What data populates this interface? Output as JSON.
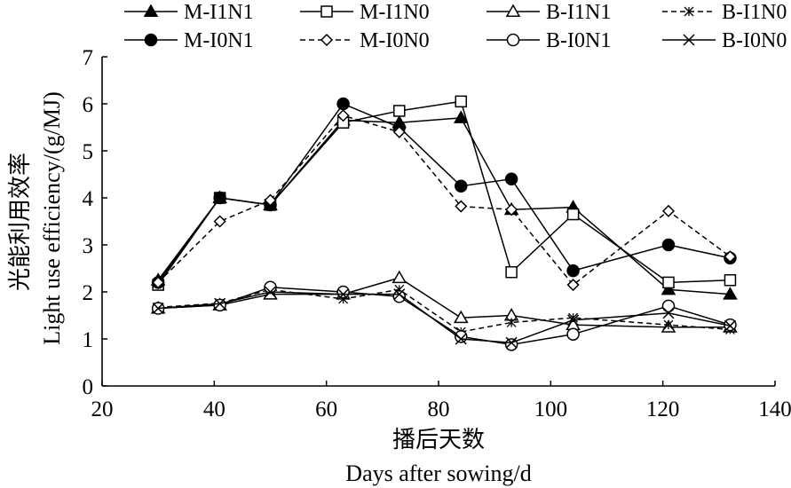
{
  "chart_data": {
    "type": "line",
    "xlabel_zh": "播后天数",
    "xlabel_en": "Days after sowing/d",
    "ylabel_zh": "光能利用效率",
    "ylabel_en": "Light use efficiency/(g/MJ)",
    "xlim": [
      20,
      140
    ],
    "ylim": [
      0,
      7
    ],
    "xticks": [
      20,
      40,
      60,
      80,
      100,
      120,
      140
    ],
    "yticks": [
      0,
      1,
      2,
      3,
      4,
      5,
      6,
      7
    ],
    "grid": false,
    "legend_position": "top",
    "x": [
      30,
      41,
      50,
      63,
      73,
      84,
      93,
      104,
      121,
      132
    ],
    "series": [
      {
        "name": "M-I1N1",
        "marker": "triangle-filled",
        "dash": "solid",
        "values": [
          2.25,
          4.0,
          3.85,
          5.65,
          5.6,
          5.7,
          3.75,
          3.8,
          2.05,
          1.95
        ]
      },
      {
        "name": "M-I1N0",
        "marker": "square-open",
        "dash": "solid",
        "values": [
          2.15,
          4.0,
          3.85,
          5.6,
          5.85,
          6.05,
          2.42,
          3.65,
          2.2,
          2.25
        ]
      },
      {
        "name": "B-I1N1",
        "marker": "triangle-open",
        "dash": "solid",
        "values": [
          1.65,
          1.72,
          1.95,
          1.95,
          2.3,
          1.45,
          1.5,
          1.3,
          1.25,
          1.25
        ]
      },
      {
        "name": "B-I1N0",
        "marker": "asterisk",
        "dash": "dashed",
        "values": [
          1.67,
          1.76,
          2.05,
          1.85,
          2.05,
          1.15,
          1.35,
          1.45,
          1.3,
          1.2
        ]
      },
      {
        "name": "M-I0N1",
        "marker": "circle-filled",
        "dash": "solid",
        "values": [
          2.2,
          4.0,
          3.85,
          6.0,
          5.5,
          4.25,
          4.4,
          2.45,
          3.0,
          2.72
        ]
      },
      {
        "name": "M-I0N0",
        "marker": "diamond-open",
        "dash": "dashed",
        "values": [
          2.2,
          3.5,
          3.95,
          5.75,
          5.4,
          3.82,
          3.75,
          2.15,
          3.72,
          2.75
        ]
      },
      {
        "name": "B-I0N1",
        "marker": "circle-open",
        "dash": "solid",
        "values": [
          1.65,
          1.72,
          2.1,
          2.0,
          1.9,
          1.05,
          0.88,
          1.1,
          1.7,
          1.3
        ]
      },
      {
        "name": "B-I0N0",
        "marker": "x",
        "dash": "solid",
        "values": [
          1.65,
          1.75,
          2.0,
          1.95,
          1.95,
          1.0,
          0.92,
          1.4,
          1.55,
          1.28
        ]
      }
    ]
  }
}
